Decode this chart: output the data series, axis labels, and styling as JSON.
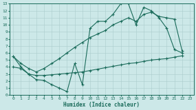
{
  "xlabel": "Humidex (Indice chaleur)",
  "bg_color": "#cce8e8",
  "grid_color": "#aacccc",
  "line_color": "#1a6b5a",
  "xlim": [
    -0.5,
    23.5
  ],
  "ylim": [
    0,
    13
  ],
  "xticks": [
    0,
    1,
    2,
    3,
    4,
    5,
    6,
    7,
    8,
    9,
    10,
    11,
    12,
    13,
    14,
    15,
    16,
    17,
    18,
    19,
    20,
    21,
    22,
    23
  ],
  "yticks": [
    0,
    1,
    2,
    3,
    4,
    5,
    6,
    7,
    8,
    9,
    10,
    11,
    12,
    13
  ],
  "line1_x": [
    0,
    1,
    2,
    3,
    4,
    5,
    6,
    7,
    8,
    9,
    10,
    11,
    12,
    13,
    14,
    15,
    16,
    17,
    18,
    19,
    20,
    21,
    22
  ],
  "line1_y": [
    5.5,
    4.0,
    3.0,
    2.2,
    2.1,
    1.5,
    1.0,
    0.5,
    4.5,
    1.5,
    9.5,
    10.5,
    10.5,
    11.5,
    13.0,
    13.0,
    10.0,
    12.5,
    12.0,
    11.0,
    9.5,
    6.5,
    6.0
  ],
  "line2_x": [
    0,
    1,
    2,
    3,
    4,
    5,
    6,
    7,
    8,
    9,
    10,
    11,
    12,
    13,
    14,
    15,
    16,
    17,
    18,
    19,
    20,
    21,
    22
  ],
  "line2_y": [
    4.0,
    3.8,
    3.0,
    2.8,
    2.8,
    2.9,
    3.0,
    3.1,
    3.2,
    3.3,
    3.5,
    3.7,
    3.9,
    4.1,
    4.3,
    4.5,
    4.6,
    4.8,
    5.0,
    5.1,
    5.2,
    5.4,
    5.6
  ],
  "line3_x": [
    0,
    1,
    2,
    3,
    4,
    5,
    6,
    7,
    8,
    9,
    10,
    11,
    12,
    13,
    14,
    15,
    16,
    17,
    18,
    19,
    20,
    21,
    22
  ],
  "line3_y": [
    5.5,
    4.5,
    3.8,
    3.3,
    3.8,
    4.5,
    5.2,
    6.0,
    6.8,
    7.5,
    8.2,
    8.7,
    9.2,
    10.0,
    10.5,
    11.0,
    10.5,
    11.5,
    11.8,
    11.2,
    11.0,
    10.8,
    6.3
  ]
}
